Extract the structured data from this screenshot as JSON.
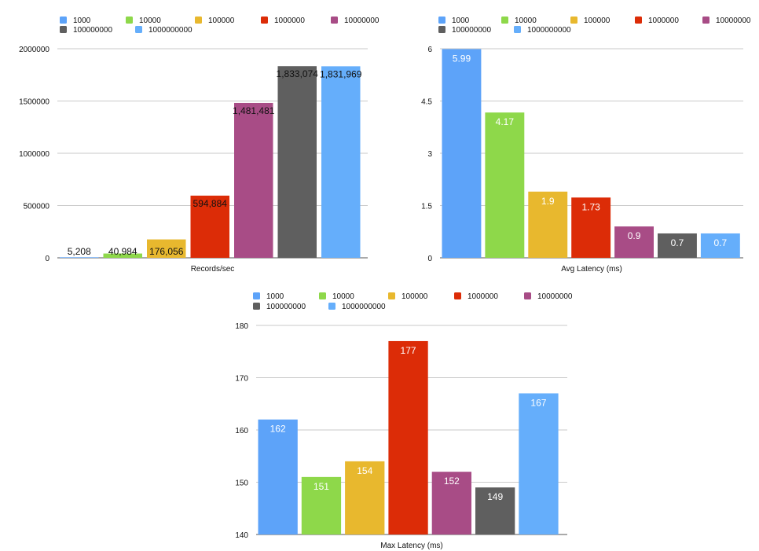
{
  "chart_data": [
    {
      "type": "bar",
      "title": "",
      "xlabel": "Records/sec",
      "ylabel": "",
      "ylim": [
        0,
        2000000
      ],
      "yticks": [
        "0",
        "500000",
        "1000000",
        "1500000",
        "2000000"
      ],
      "grid": true,
      "legend_position": "top",
      "series": [
        {
          "name": "1000",
          "values": [
            5208
          ],
          "label": "5,208",
          "color": "#5DA3F9"
        },
        {
          "name": "10000",
          "values": [
            40984
          ],
          "label": "40,984",
          "color": "#8ED84A"
        },
        {
          "name": "100000",
          "values": [
            176056
          ],
          "label": "176,056",
          "color": "#E8B82E"
        },
        {
          "name": "1000000",
          "values": [
            594884
          ],
          "label": "594,884",
          "color": "#DC2C07"
        },
        {
          "name": "10000000",
          "values": [
            1481481
          ],
          "label": "1,481,481",
          "color": "#A84C86"
        },
        {
          "name": "100000000",
          "values": [
            1833074
          ],
          "label": "1,833,074",
          "color": "#5F5F5F"
        },
        {
          "name": "1000000000",
          "values": [
            1831969
          ],
          "label": "1,831,969",
          "color": "#65AEFB"
        }
      ]
    },
    {
      "type": "bar",
      "title": "",
      "xlabel": "Avg Latency (ms)",
      "ylabel": "",
      "ylim": [
        0,
        6
      ],
      "yticks": [
        "0",
        "1.5",
        "3",
        "4.5",
        "6"
      ],
      "grid": true,
      "legend_position": "top",
      "series": [
        {
          "name": "1000",
          "values": [
            5.99
          ],
          "label": "5.99",
          "color": "#5DA3F9"
        },
        {
          "name": "10000",
          "values": [
            4.17
          ],
          "label": "4.17",
          "color": "#8ED84A"
        },
        {
          "name": "100000",
          "values": [
            1.9
          ],
          "label": "1.9",
          "color": "#E8B82E"
        },
        {
          "name": "1000000",
          "values": [
            1.73
          ],
          "label": "1.73",
          "color": "#DC2C07"
        },
        {
          "name": "10000000",
          "values": [
            0.9
          ],
          "label": "0.9",
          "color": "#A84C86"
        },
        {
          "name": "100000000",
          "values": [
            0.7
          ],
          "label": "0.7",
          "color": "#5F5F5F"
        },
        {
          "name": "1000000000",
          "values": [
            0.7
          ],
          "label": "0.7",
          "color": "#65AEFB"
        }
      ]
    },
    {
      "type": "bar",
      "title": "",
      "xlabel": "Max Latency (ms)",
      "ylabel": "",
      "ylim": [
        140,
        180
      ],
      "yticks": [
        "140",
        "150",
        "160",
        "170",
        "180"
      ],
      "grid": true,
      "legend_position": "top",
      "series": [
        {
          "name": "1000",
          "values": [
            162
          ],
          "label": "162",
          "color": "#5DA3F9"
        },
        {
          "name": "10000",
          "values": [
            151
          ],
          "label": "151",
          "color": "#8ED84A"
        },
        {
          "name": "100000",
          "values": [
            154
          ],
          "label": "154",
          "color": "#E8B82E"
        },
        {
          "name": "1000000",
          "values": [
            177
          ],
          "label": "177",
          "color": "#DC2C07"
        },
        {
          "name": "10000000",
          "values": [
            152
          ],
          "label": "152",
          "color": "#A84C86"
        },
        {
          "name": "100000000",
          "values": [
            149
          ],
          "label": "149",
          "color": "#5F5F5F"
        },
        {
          "name": "1000000000",
          "values": [
            167
          ],
          "label": "167",
          "color": "#65AEFB"
        }
      ]
    }
  ]
}
